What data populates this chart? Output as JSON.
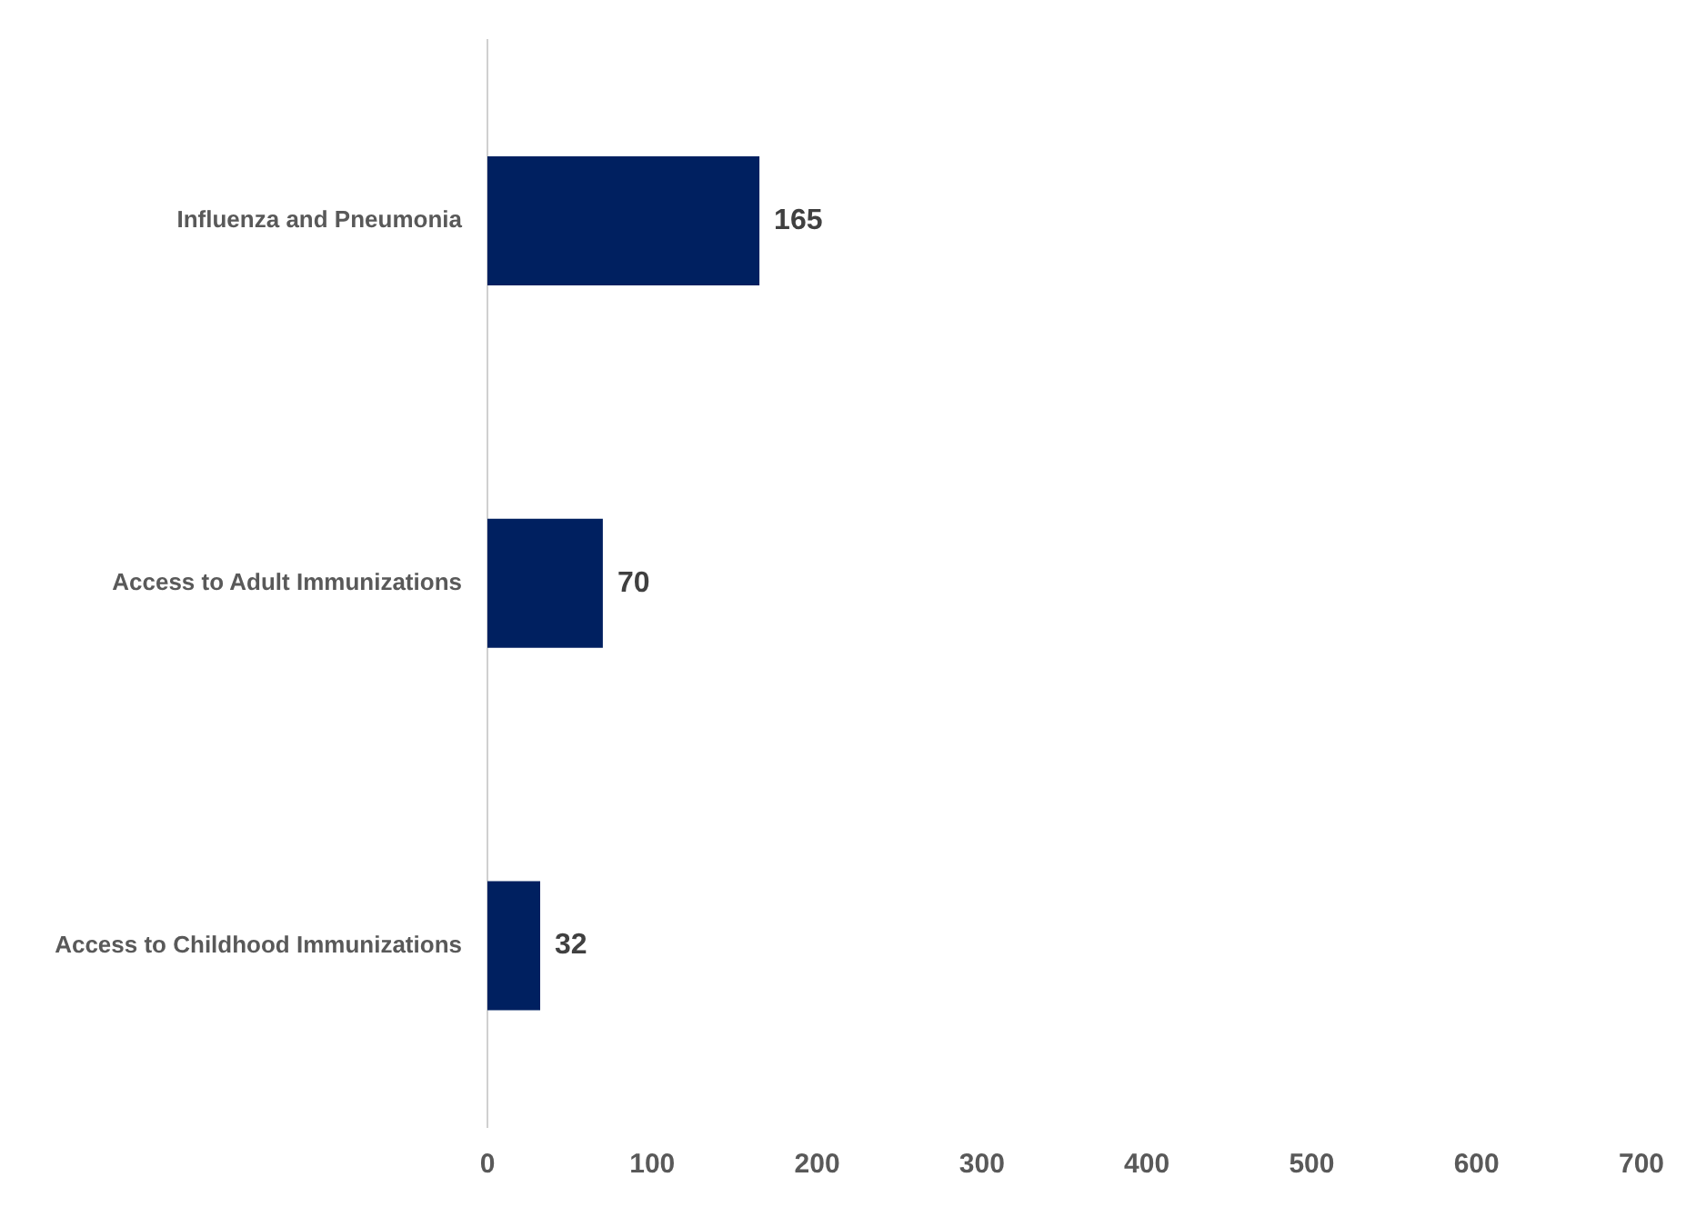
{
  "chart_data": {
    "type": "bar",
    "orientation": "horizontal",
    "categories": [
      "Influenza and Pneumonia",
      "Access to Adult Immunizations",
      "Access to Childhood Immunizations"
    ],
    "values": [
      165,
      70,
      32
    ],
    "color": "#002060",
    "xlim": [
      0,
      700
    ],
    "xticks": [
      0,
      100,
      200,
      300,
      400,
      500,
      600,
      700
    ],
    "grid": false,
    "legend": false,
    "data_labels": true
  }
}
